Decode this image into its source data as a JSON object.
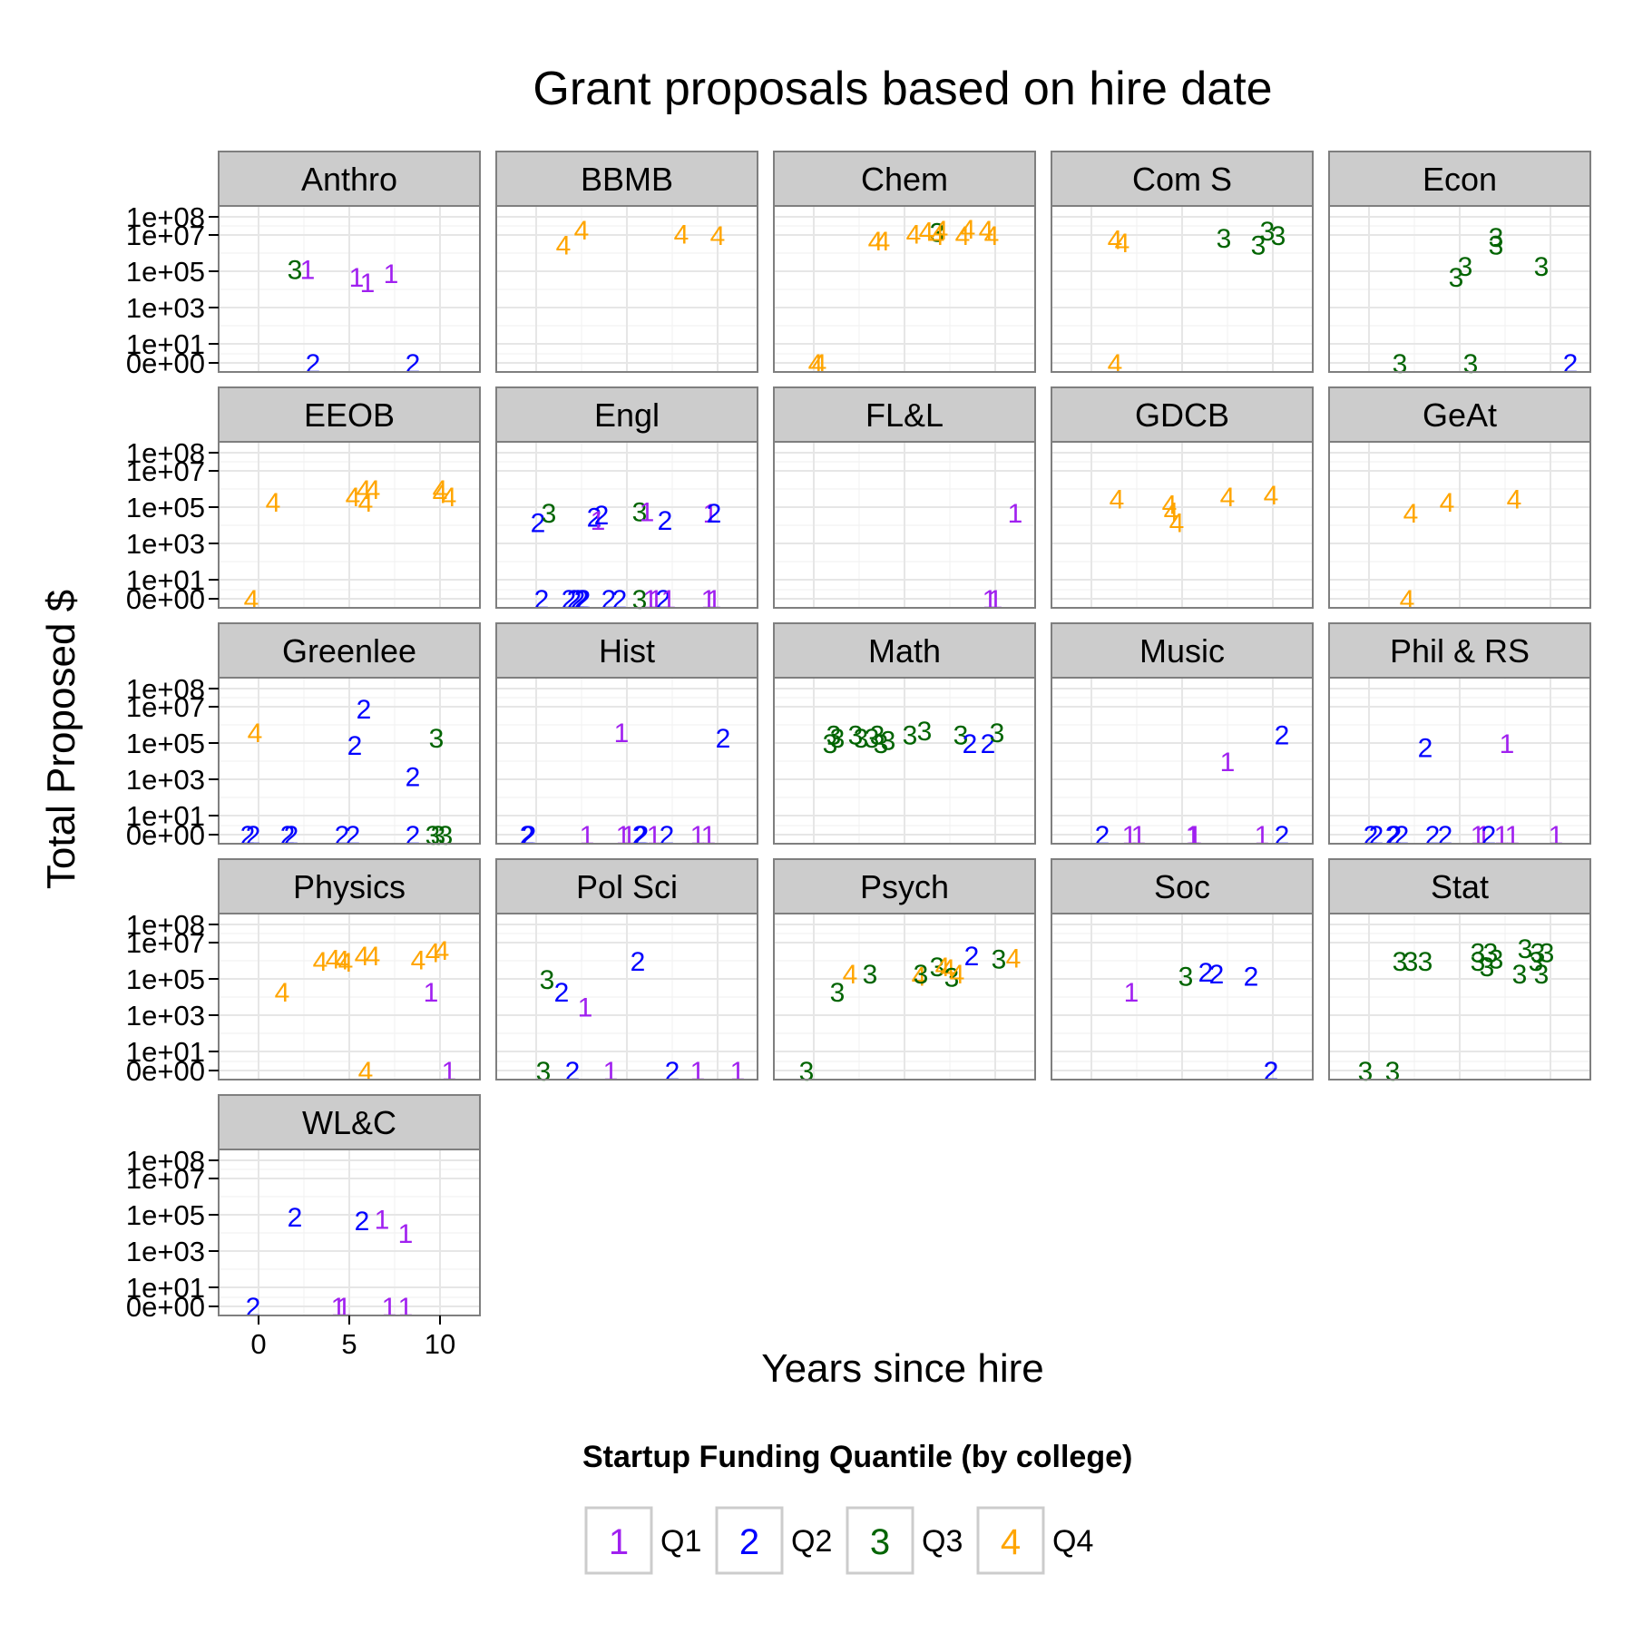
{
  "chart_data": {
    "type": "scatter",
    "title": "Grant proposals based on hire date",
    "xlabel": "Years since hire",
    "ylabel": "Total Proposed $",
    "y_scale": "pseudo-log",
    "x_ticks": [
      "0",
      "5",
      "10"
    ],
    "x_tick_values": [
      0,
      5,
      10
    ],
    "y_ticks": [
      "0e+00",
      "1e+01",
      "1e+03",
      "1e+05",
      "1e+07",
      "1e+08"
    ],
    "y_tick_values": [
      0,
      10,
      1000,
      100000,
      10000000,
      100000000
    ],
    "xlim": [
      -1,
      11
    ],
    "grid": true,
    "legend": {
      "title": "Startup Funding Quantile (by college)",
      "position": "bottom",
      "entries": [
        {
          "key": "1",
          "label": "Q1",
          "color": "#a020f0"
        },
        {
          "key": "2",
          "label": "Q2",
          "color": "#0000ff"
        },
        {
          "key": "3",
          "label": "Q3",
          "color": "#006400"
        },
        {
          "key": "4",
          "label": "Q4",
          "color": "#ffa500"
        }
      ]
    },
    "panels": [
      {
        "name": "Anthro",
        "points": [
          [
            2.0,
            130000.0,
            3
          ],
          [
            2.7,
            130000.0,
            1
          ],
          [
            5.4,
            50000.0,
            1
          ],
          [
            6,
            25000.0,
            1
          ],
          [
            7.3,
            80000.0,
            1
          ],
          [
            3,
            0,
            2
          ],
          [
            8.5,
            0,
            2
          ]
        ]
      },
      {
        "name": "BBMB",
        "points": [
          [
            1.5,
            3000000.0,
            4
          ],
          [
            2.5,
            20000000.0,
            4
          ],
          [
            8,
            12000000.0,
            4
          ],
          [
            10,
            10000000.0,
            4
          ]
        ]
      },
      {
        "name": "Chem",
        "points": [
          [
            0.1,
            0,
            4
          ],
          [
            0.3,
            0,
            4
          ],
          [
            3.4,
            5000000.0,
            4
          ],
          [
            3.8,
            5000000.0,
            4
          ],
          [
            5.5,
            12000000.0,
            4
          ],
          [
            6.2,
            17000000.0,
            4
          ],
          [
            6.8,
            15000000.0,
            3
          ],
          [
            6.8,
            10000000.0,
            4
          ],
          [
            7,
            20000000.0,
            4
          ],
          [
            8.2,
            10000000.0,
            4
          ],
          [
            8.5,
            23000000.0,
            4
          ],
          [
            9.5,
            20000000.0,
            4
          ],
          [
            9.8,
            10000000.0,
            4
          ]
        ]
      },
      {
        "name": "Com S",
        "points": [
          [
            1.3,
            6000000.0,
            4
          ],
          [
            1.7,
            4000000.0,
            4
          ],
          [
            1.3,
            0,
            4
          ],
          [
            7.3,
            7000000.0,
            3
          ],
          [
            9.2,
            3000000.0,
            3
          ],
          [
            9.7,
            18000000.0,
            3
          ],
          [
            10.3,
            10000000.0,
            3
          ]
        ]
      },
      {
        "name": "Econ",
        "points": [
          [
            1.7,
            0,
            3
          ],
          [
            4.8,
            50000.0,
            3
          ],
          [
            5.3,
            200000.0,
            3
          ],
          [
            5.6,
            0,
            3
          ],
          [
            7,
            8000000.0,
            3
          ],
          [
            7,
            3000000.0,
            3
          ],
          [
            9.5,
            200000.0,
            3
          ],
          [
            11.1,
            0,
            2
          ]
        ]
      },
      {
        "name": "EEOB",
        "points": [
          [
            -0.4,
            0,
            4
          ],
          [
            0.8,
            200000.0,
            4
          ],
          [
            5.2,
            400000.0,
            4
          ],
          [
            5.8,
            1000000.0,
            4
          ],
          [
            5.9,
            200000.0,
            4
          ],
          [
            6.3,
            1000000.0,
            4
          ],
          [
            10,
            600000.0,
            4
          ],
          [
            10.5,
            400000.0,
            4
          ],
          [
            10,
            1000000.0,
            4
          ]
        ]
      },
      {
        "name": "Engl",
        "points": [
          [
            0.3,
            0,
            2
          ],
          [
            0.1,
            15000.0,
            2
          ],
          [
            0.7,
            50000.0,
            3
          ],
          [
            1.8,
            0,
            2
          ],
          [
            2.1,
            0,
            2
          ],
          [
            2.3,
            0,
            2
          ],
          [
            2.5,
            0,
            2
          ],
          [
            2.6,
            0,
            2
          ],
          [
            3.2,
            30000.0,
            2
          ],
          [
            3.4,
            20000.0,
            1
          ],
          [
            3.6,
            40000.0,
            2
          ],
          [
            4,
            0,
            2
          ],
          [
            4.6,
            0,
            2
          ],
          [
            5.7,
            0,
            3
          ],
          [
            5.7,
            60000.0,
            3
          ],
          [
            6.1,
            60000.0,
            1
          ],
          [
            6.3,
            0,
            1
          ],
          [
            6.6,
            0,
            1
          ],
          [
            7,
            0,
            2
          ],
          [
            7.1,
            20000.0,
            2
          ],
          [
            7.3,
            0,
            1
          ],
          [
            9.5,
            0,
            1
          ],
          [
            9.6,
            50000.0,
            1
          ],
          [
            9.8,
            50000.0,
            2
          ],
          [
            9.8,
            0,
            1
          ]
        ]
      },
      {
        "name": "FL&L",
        "points": [
          [
            9.7,
            0,
            1
          ],
          [
            10,
            0,
            1
          ],
          [
            11.1,
            50000.0,
            1
          ]
        ]
      },
      {
        "name": "GDCB",
        "points": [
          [
            1.4,
            300000.0,
            4
          ],
          [
            4.3,
            150000.0,
            4
          ],
          [
            4.4,
            60000.0,
            4
          ],
          [
            4.7,
            15000.0,
            4
          ],
          [
            7.5,
            400000.0,
            4
          ],
          [
            9.9,
            500000.0,
            4
          ]
        ]
      },
      {
        "name": "GeAt",
        "points": [
          [
            2.3,
            50000.0,
            4
          ],
          [
            2.1,
            0,
            4
          ],
          [
            4.3,
            200000.0,
            4
          ],
          [
            8,
            300000.0,
            4
          ]
        ]
      },
      {
        "name": "Greenlee",
        "points": [
          [
            -0.6,
            0,
            2
          ],
          [
            -0.3,
            0,
            2
          ],
          [
            -0.2,
            400000.0,
            4
          ],
          [
            1.6,
            0,
            2
          ],
          [
            1.8,
            0,
            2
          ],
          [
            4.6,
            0,
            2
          ],
          [
            5.2,
            0,
            2
          ],
          [
            5.3,
            80000.0,
            2
          ],
          [
            5.8,
            8000000.0,
            2
          ],
          [
            8.5,
            1500.0,
            2
          ],
          [
            8.5,
            0,
            2
          ],
          [
            9.6,
            0,
            3
          ],
          [
            9.8,
            200000.0,
            3
          ],
          [
            9.9,
            0,
            3
          ],
          [
            10.3,
            0,
            3
          ]
        ]
      },
      {
        "name": "Hist",
        "points": [
          [
            -0.5,
            0,
            2
          ],
          [
            -0.4,
            0,
            2
          ],
          [
            2.8,
            0,
            1
          ],
          [
            4.7,
            400000.0,
            1
          ],
          [
            4.8,
            0,
            1
          ],
          [
            5.1,
            0,
            1
          ],
          [
            5.7,
            0,
            2
          ],
          [
            5.8,
            0,
            2
          ],
          [
            6.5,
            0,
            1
          ],
          [
            7.2,
            0,
            2
          ],
          [
            8.9,
            0,
            1
          ],
          [
            9.5,
            0,
            1
          ],
          [
            10.3,
            200000.0,
            2
          ]
        ]
      },
      {
        "name": "Math",
        "points": [
          [
            0.9,
            100000.0,
            3
          ],
          [
            1.1,
            300000.0,
            3
          ],
          [
            1.3,
            200000.0,
            3
          ],
          [
            2.3,
            300000.0,
            3
          ],
          [
            2.6,
            200000.0,
            3
          ],
          [
            3.2,
            200000.0,
            3
          ],
          [
            3.5,
            300000.0,
            3
          ],
          [
            3.7,
            100000.0,
            3
          ],
          [
            4.1,
            150000.0,
            3
          ],
          [
            5.3,
            300000.0,
            3
          ],
          [
            6.1,
            500000.0,
            3
          ],
          [
            8.1,
            300000.0,
            3
          ],
          [
            8.6,
            100000.0,
            2
          ],
          [
            9.6,
            100000.0,
            2
          ],
          [
            10.1,
            400000.0,
            3
          ]
        ]
      },
      {
        "name": "Music",
        "points": [
          [
            0.6,
            0,
            2
          ],
          [
            2.1,
            0,
            1
          ],
          [
            2.6,
            0,
            1
          ],
          [
            5.6,
            0,
            1
          ],
          [
            5.7,
            0,
            1
          ],
          [
            7.5,
            10000.0,
            1
          ],
          [
            9.4,
            0,
            1
          ],
          [
            10.5,
            300000.0,
            2
          ],
          [
            10.5,
            0,
            2
          ]
        ]
      },
      {
        "name": "Phil & RS",
        "points": [
          [
            0.1,
            0,
            2
          ],
          [
            0.4,
            0,
            2
          ],
          [
            1.3,
            0,
            2
          ],
          [
            1.4,
            0,
            2
          ],
          [
            1.8,
            0,
            2
          ],
          [
            3.1,
            60000.0,
            2
          ],
          [
            3.5,
            0,
            2
          ],
          [
            4.2,
            0,
            2
          ],
          [
            6,
            0,
            1
          ],
          [
            6.3,
            0,
            1
          ],
          [
            6.6,
            0,
            2
          ],
          [
            7.3,
            0,
            1
          ],
          [
            7.6,
            100000.0,
            1
          ],
          [
            7.9,
            0,
            1
          ],
          [
            10.3,
            0,
            1
          ]
        ]
      },
      {
        "name": "Physics",
        "points": [
          [
            1.3,
            20000.0,
            4
          ],
          [
            3.4,
            1000000.0,
            4
          ],
          [
            4.1,
            1300000.0,
            4
          ],
          [
            4.6,
            1200000.0,
            4
          ],
          [
            4.8,
            900000.0,
            4
          ],
          [
            5.7,
            2000000.0,
            4
          ],
          [
            6.3,
            2000000.0,
            4
          ],
          [
            8.8,
            1200000.0,
            4
          ],
          [
            9.6,
            3000000.0,
            4
          ],
          [
            10.1,
            4000000.0,
            4
          ],
          [
            9.5,
            20000.0,
            1
          ],
          [
            5.9,
            0,
            4
          ],
          [
            10.5,
            0,
            1
          ]
        ]
      },
      {
        "name": "Pol Sci",
        "points": [
          [
            0.4,
            0,
            3
          ],
          [
            0.6,
            100000.0,
            3
          ],
          [
            1.4,
            20000.0,
            2
          ],
          [
            2,
            0,
            2
          ],
          [
            2.7,
            3000.0,
            1
          ],
          [
            4.1,
            0,
            1
          ],
          [
            5.6,
            1000000.0,
            2
          ],
          [
            7.5,
            0,
            2
          ],
          [
            8.9,
            0,
            1
          ],
          [
            11.1,
            0,
            1
          ]
        ]
      },
      {
        "name": "Psych",
        "points": [
          [
            -0.4,
            0,
            3
          ],
          [
            1.3,
            20000.0,
            3
          ],
          [
            2,
            200000.0,
            4
          ],
          [
            3.1,
            200000.0,
            3
          ],
          [
            5.8,
            150000.0,
            4
          ],
          [
            5.9,
            200000.0,
            3
          ],
          [
            6.8,
            500000.0,
            3
          ],
          [
            7.1,
            500000.0,
            4
          ],
          [
            7.4,
            400000.0,
            4
          ],
          [
            7.6,
            130000.0,
            3
          ],
          [
            7.9,
            200000.0,
            4
          ],
          [
            8.7,
            2000000.0,
            2
          ],
          [
            10.2,
            1300000.0,
            3
          ],
          [
            11,
            1500000.0,
            4
          ]
        ]
      },
      {
        "name": "Soc",
        "points": [
          [
            2.2,
            20000.0,
            1
          ],
          [
            5.2,
            150000.0,
            3
          ],
          [
            6.3,
            250000.0,
            2
          ],
          [
            6.9,
            200000.0,
            2
          ],
          [
            8.8,
            150000.0,
            2
          ],
          [
            9.9,
            0,
            2
          ],
          [
            9.9,
            0,
            2
          ]
        ]
      },
      {
        "name": "Stat",
        "points": [
          [
            -0.2,
            0,
            3
          ],
          [
            1.3,
            0,
            3
          ],
          [
            1.7,
            1000000.0,
            3
          ],
          [
            2.3,
            1000000.0,
            3
          ],
          [
            3.1,
            1000000.0,
            3
          ],
          [
            6,
            3000000.0,
            3
          ],
          [
            6,
            1000000.0,
            3
          ],
          [
            6.5,
            500000.0,
            3
          ],
          [
            6.7,
            3000000.0,
            3
          ],
          [
            7,
            1300000.0,
            3
          ],
          [
            8.3,
            200000.0,
            3
          ],
          [
            8.6,
            5000000.0,
            3
          ],
          [
            9.2,
            1000000.0,
            3
          ],
          [
            9.3,
            3000000.0,
            3
          ],
          [
            9.5,
            200000.0,
            3
          ],
          [
            9.8,
            3000000.0,
            3
          ]
        ]
      },
      {
        "name": "WL&C",
        "points": [
          [
            -0.3,
            0,
            2
          ],
          [
            2,
            80000.0,
            2
          ],
          [
            4.4,
            0,
            1
          ],
          [
            4.7,
            0,
            1
          ],
          [
            5.7,
            50000.0,
            2
          ],
          [
            6.8,
            60000.0,
            1
          ],
          [
            7.2,
            0,
            1
          ],
          [
            8.1,
            10000.0,
            1
          ],
          [
            8.1,
            0,
            1
          ]
        ]
      }
    ]
  }
}
